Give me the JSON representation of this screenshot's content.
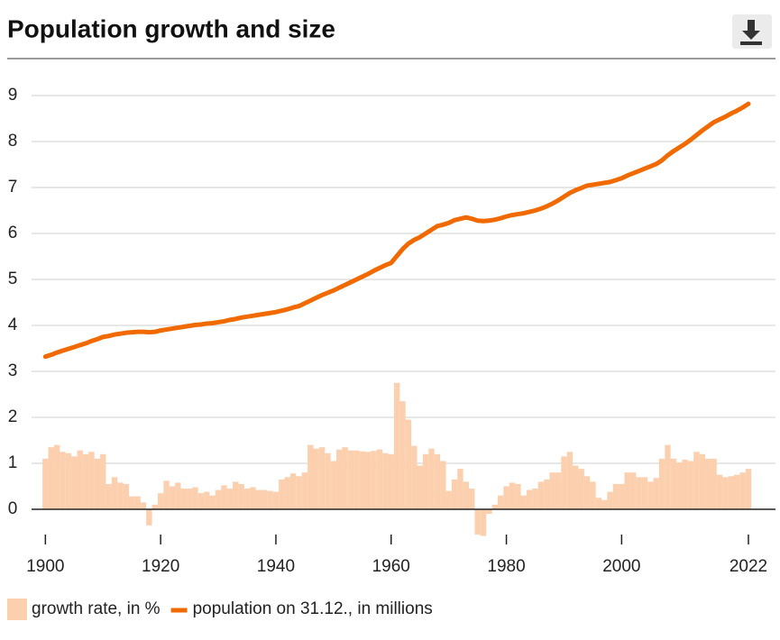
{
  "chart_data": {
    "type": "combo",
    "title": "Population growth and size",
    "x": [
      1900,
      1901,
      1902,
      1903,
      1904,
      1905,
      1906,
      1907,
      1908,
      1909,
      1910,
      1911,
      1912,
      1913,
      1914,
      1915,
      1916,
      1917,
      1918,
      1919,
      1920,
      1921,
      1922,
      1923,
      1924,
      1925,
      1926,
      1927,
      1928,
      1929,
      1930,
      1931,
      1932,
      1933,
      1934,
      1935,
      1936,
      1937,
      1938,
      1939,
      1940,
      1941,
      1942,
      1943,
      1944,
      1945,
      1946,
      1947,
      1948,
      1949,
      1950,
      1951,
      1952,
      1953,
      1954,
      1955,
      1956,
      1957,
      1958,
      1959,
      1960,
      1961,
      1962,
      1963,
      1964,
      1965,
      1966,
      1967,
      1968,
      1969,
      1970,
      1971,
      1972,
      1973,
      1974,
      1975,
      1976,
      1977,
      1978,
      1979,
      1980,
      1981,
      1982,
      1983,
      1984,
      1985,
      1986,
      1987,
      1988,
      1989,
      1990,
      1991,
      1992,
      1993,
      1994,
      1995,
      1996,
      1997,
      1998,
      1999,
      2000,
      2001,
      2002,
      2003,
      2004,
      2005,
      2006,
      2007,
      2008,
      2009,
      2010,
      2011,
      2012,
      2013,
      2014,
      2015,
      2016,
      2017,
      2018,
      2019,
      2020,
      2021,
      2022
    ],
    "series": [
      {
        "name": "growth rate, in %",
        "type": "bar",
        "color": "#fccfae",
        "values": [
          1.1,
          1.35,
          1.4,
          1.25,
          1.22,
          1.15,
          1.28,
          1.2,
          1.25,
          1.1,
          1.2,
          0.55,
          0.7,
          0.58,
          0.55,
          0.28,
          0.28,
          0.15,
          -0.35,
          0.1,
          0.35,
          0.62,
          0.5,
          0.58,
          0.45,
          0.45,
          0.48,
          0.35,
          0.38,
          0.3,
          0.42,
          0.52,
          0.45,
          0.6,
          0.55,
          0.45,
          0.48,
          0.42,
          0.42,
          0.4,
          0.38,
          0.65,
          0.7,
          0.78,
          0.72,
          0.8,
          1.4,
          1.32,
          1.35,
          1.22,
          1.05,
          1.3,
          1.35,
          1.28,
          1.28,
          1.26,
          1.25,
          1.27,
          1.3,
          1.22,
          1.2,
          2.75,
          2.35,
          1.95,
          1.38,
          0.95,
          1.2,
          1.32,
          1.2,
          1.05,
          0.4,
          0.65,
          0.88,
          0.6,
          0.45,
          -0.55,
          -0.58,
          -0.1,
          0.1,
          0.3,
          0.5,
          0.58,
          0.55,
          0.3,
          0.42,
          0.45,
          0.6,
          0.65,
          0.8,
          0.8,
          1.15,
          1.25,
          0.95,
          0.88,
          0.72,
          0.6,
          0.25,
          0.2,
          0.38,
          0.55,
          0.55,
          0.8,
          0.8,
          0.7,
          0.7,
          0.6,
          0.68,
          1.1,
          1.4,
          1.1,
          1.02,
          1.08,
          1.05,
          1.25,
          1.2,
          1.1,
          1.1,
          0.75,
          0.7,
          0.72,
          0.75,
          0.8,
          0.88
        ]
      },
      {
        "name": "population on 31.12., in millions",
        "type": "line",
        "color": "#f06a00",
        "values": [
          3.32,
          3.36,
          3.41,
          3.45,
          3.49,
          3.53,
          3.57,
          3.61,
          3.66,
          3.7,
          3.75,
          3.77,
          3.8,
          3.82,
          3.84,
          3.85,
          3.86,
          3.86,
          3.85,
          3.86,
          3.89,
          3.91,
          3.93,
          3.95,
          3.97,
          3.99,
          4.01,
          4.02,
          4.04,
          4.05,
          4.07,
          4.09,
          4.12,
          4.14,
          4.17,
          4.19,
          4.21,
          4.23,
          4.25,
          4.27,
          4.29,
          4.32,
          4.35,
          4.39,
          4.42,
          4.48,
          4.54,
          4.6,
          4.66,
          4.71,
          4.76,
          4.82,
          4.88,
          4.94,
          5.0,
          5.06,
          5.12,
          5.19,
          5.25,
          5.31,
          5.36,
          5.51,
          5.66,
          5.78,
          5.86,
          5.92,
          6.0,
          6.08,
          6.16,
          6.19,
          6.23,
          6.29,
          6.32,
          6.35,
          6.32,
          6.28,
          6.27,
          6.28,
          6.3,
          6.33,
          6.37,
          6.4,
          6.42,
          6.44,
          6.47,
          6.5,
          6.54,
          6.59,
          6.65,
          6.72,
          6.8,
          6.88,
          6.94,
          6.99,
          7.04,
          7.06,
          7.08,
          7.1,
          7.12,
          7.16,
          7.2,
          7.26,
          7.31,
          7.36,
          7.41,
          7.46,
          7.51,
          7.59,
          7.7,
          7.79,
          7.87,
          7.95,
          8.04,
          8.14,
          8.24,
          8.33,
          8.42,
          8.48,
          8.54,
          8.61,
          8.67,
          8.74,
          8.82
        ]
      }
    ],
    "xlim": [
      1897.6,
      2026.7
    ],
    "xticks": [
      1900,
      1920,
      1940,
      1960,
      1980,
      2000,
      2022
    ],
    "ylim": [
      -0.6,
      9.3
    ],
    "yticks": [
      0,
      1,
      2,
      3,
      4,
      5,
      6,
      7,
      8,
      9
    ],
    "grid": true
  }
}
